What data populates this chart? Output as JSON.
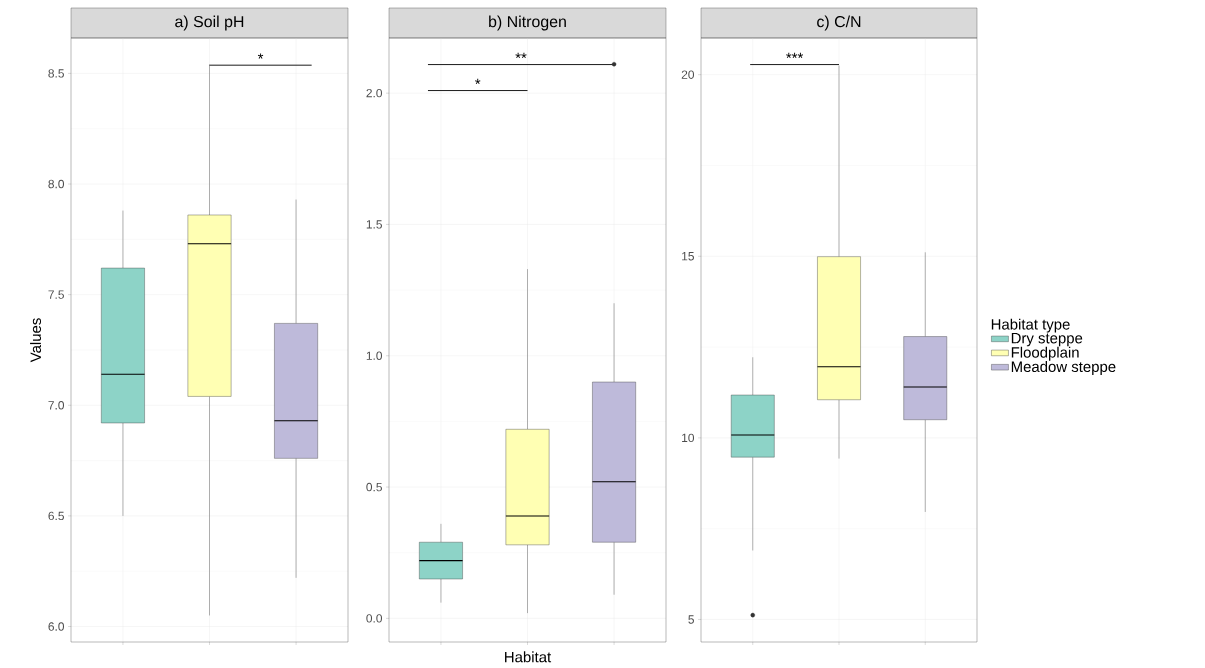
{
  "chart_data": [
    {
      "type": "box",
      "title": "a) Soil pH",
      "ylabel": "Values",
      "categories": [
        null,
        null,
        null
      ],
      "tick_labels": "y",
      "grid": true,
      "series": [
        {
          "color": "#8dd3c7",
          "boxes": [
            {
              "low": 6.5,
              "q1": 6.92,
              "median": 7.14,
              "q3": 7.62,
              "high": 7.88
            },
            null,
            null
          ]
        },
        {
          "color": "#ffffb3",
          "boxes": [
            null,
            {
              "low": 6.05,
              "q1": 7.04,
              "median": 7.73,
              "q3": 7.86,
              "high": 8.54
            },
            null
          ]
        },
        {
          "color": "#bebada",
          "boxes": [
            null,
            null,
            {
              "low": 6.22,
              "q1": 6.76,
              "median": 6.93,
              "q3": 7.37,
              "high": 7.93
            }
          ]
        }
      ],
      "ylim": [
        5.93,
        8.66
      ],
      "yticks": [
        {
          "value": 6.0,
          "label": "6.0"
        },
        {
          "value": 6.5,
          "label": "6.5"
        },
        {
          "value": 7.0,
          "label": "7.0"
        },
        {
          "value": 7.5,
          "label": "7.5"
        },
        {
          "value": 8.0,
          "label": "8.0"
        },
        {
          "value": 8.5,
          "label": "8.5"
        }
      ],
      "annotations": [
        "*"
      ]
    },
    {
      "type": "box",
      "title": "b) Nitrogen",
      "xlabel": "Habitat",
      "categories": [
        null,
        null,
        null
      ],
      "tick_labels": "y",
      "grid": true,
      "series": [
        {
          "color": "#8dd3c7",
          "boxes": [
            {
              "low": 0.06,
              "q1": 0.15,
              "median": 0.22,
              "q3": 0.29,
              "high": 0.36
            },
            null,
            null
          ]
        },
        {
          "color": "#ffffb3",
          "boxes": [
            null,
            {
              "low": 0.02,
              "q1": 0.28,
              "median": 0.39,
              "q3": 0.72,
              "high": 1.33
            },
            null
          ]
        },
        {
          "color": "#bebada",
          "boxes": [
            null,
            null,
            {
              "low": 0.09,
              "q1": 0.29,
              "median": 0.52,
              "q3": 0.9,
              "high": 1.2,
              "outliers": [
                2.11
              ]
            }
          ]
        }
      ],
      "ylim": [
        -0.09,
        2.21
      ],
      "yticks": [
        {
          "value": 0.0,
          "label": "0.0"
        },
        {
          "value": 0.5,
          "label": "0.5"
        },
        {
          "value": 1.0,
          "label": "1.0"
        },
        {
          "value": 1.5,
          "label": "1.5"
        },
        {
          "value": 2.0,
          "label": "2.0"
        }
      ],
      "annotations": [
        "*",
        "**"
      ]
    },
    {
      "type": "box",
      "title": "c) C/N",
      "categories": [
        null,
        null,
        null
      ],
      "tick_labels": "y",
      "grid": true,
      "legend": "right",
      "legend_title": "Habitat type",
      "series": [
        {
          "name": "Dry steppe",
          "color": "#8dd3c7",
          "boxes": [
            {
              "low": 6.9,
              "q1": 9.47,
              "median": 10.08,
              "q3": 11.18,
              "high": 12.22,
              "outliers": [
                5.12
              ]
            },
            null,
            null
          ]
        },
        {
          "name": "Floodplain",
          "color": "#ffffb3",
          "boxes": [
            null,
            {
              "low": 9.43,
              "q1": 11.05,
              "median": 11.96,
              "q3": 14.99,
              "high": 20.25
            },
            null
          ]
        },
        {
          "name": "Meadow steppe",
          "color": "#bebada",
          "boxes": [
            null,
            null,
            {
              "low": 7.96,
              "q1": 10.5,
              "median": 11.4,
              "q3": 12.79,
              "high": 15.11
            }
          ]
        }
      ],
      "ylim": [
        4.38,
        21.01
      ],
      "yticks": [
        5,
        10,
        15,
        20
      ],
      "annotations": [
        "***"
      ]
    }
  ]
}
